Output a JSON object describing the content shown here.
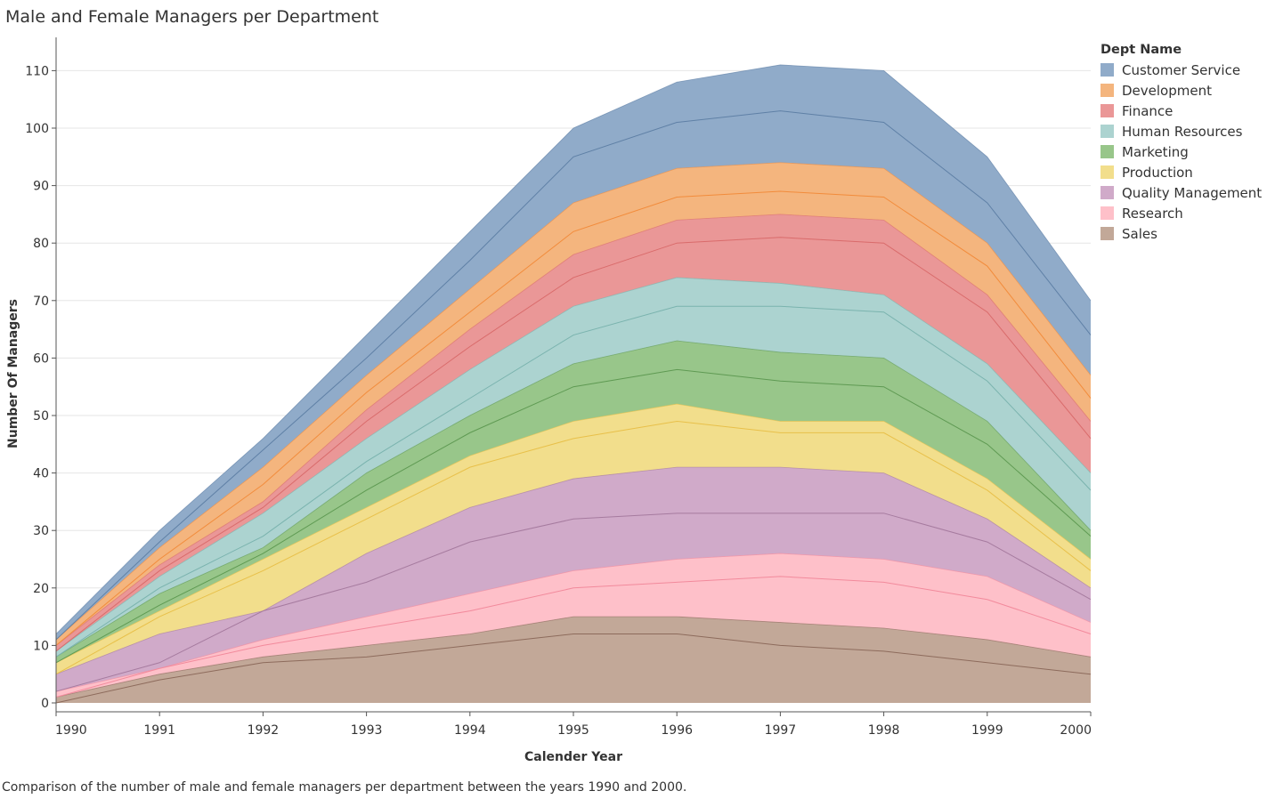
{
  "title": "Male and Female Managers per Department",
  "caption": "Comparison of the number of male and female managers per department between the years 1990 and 2000.",
  "legend_title": "Dept Name",
  "chart_data": {
    "type": "area",
    "stacked": true,
    "title": "Male and Female Managers per Department",
    "xlabel": "Calender Year",
    "ylabel": "Number Of Managers",
    "x": [
      1990,
      1991,
      1992,
      1993,
      1994,
      1995,
      1996,
      1997,
      1998,
      1999,
      2000
    ],
    "xlim": [
      1990,
      2000
    ],
    "ylim": [
      0,
      110
    ],
    "yticks": [
      0,
      10,
      20,
      30,
      40,
      50,
      60,
      70,
      80,
      90,
      100,
      110
    ],
    "grid": true,
    "legend_position": "right",
    "series": [
      {
        "name": "Sales",
        "color": "#c2a898",
        "line_color": "#8d6b5c",
        "values": [
          1,
          5,
          8,
          10,
          12,
          15,
          15,
          14,
          13,
          11,
          8
        ],
        "inner_line": [
          0,
          4,
          7,
          8,
          10,
          12,
          12,
          10,
          9,
          7,
          5
        ]
      },
      {
        "name": "Research",
        "color": "#fec0c9",
        "line_color": "#f28a9c",
        "values": [
          1,
          1,
          3,
          5,
          7,
          8,
          10,
          12,
          12,
          11,
          6
        ],
        "inner_line": [
          0,
          1,
          2,
          3,
          4,
          5,
          6,
          8,
          8,
          7,
          4
        ]
      },
      {
        "name": "Quality Management",
        "color": "#d0aac9",
        "line_color": "#a67b9f",
        "values": [
          3,
          6,
          5,
          11,
          15,
          16,
          16,
          15,
          15,
          10,
          6
        ],
        "inner_line": [
          0,
          1,
          5,
          6,
          9,
          9,
          8,
          7,
          8,
          6,
          4
        ]
      },
      {
        "name": "Production",
        "color": "#f2de8c",
        "line_color": "#e8c04a",
        "values": [
          2,
          4,
          9,
          8,
          9,
          10,
          11,
          8,
          9,
          7,
          5
        ],
        "inner_line": [
          0,
          3,
          7,
          6,
          7,
          7,
          8,
          6,
          7,
          5,
          3
        ]
      },
      {
        "name": "Marketing",
        "color": "#98c68a",
        "line_color": "#5f9a53",
        "values": [
          1,
          3,
          2,
          6,
          7,
          10,
          11,
          12,
          11,
          10,
          5
        ],
        "inner_line": [
          0,
          1,
          1,
          3,
          4,
          6,
          6,
          7,
          6,
          6,
          4
        ]
      },
      {
        "name": "Human Resources",
        "color": "#acd3d0",
        "line_color": "#7ab3ae",
        "values": [
          1,
          3,
          6,
          6,
          8,
          10,
          11,
          12,
          11,
          10,
          10
        ],
        "inner_line": [
          0,
          1,
          2,
          2,
          3,
          5,
          6,
          8,
          8,
          7,
          7
        ]
      },
      {
        "name": "Finance",
        "color": "#ea9797",
        "line_color": "#d96b6b",
        "values": [
          1,
          2,
          2,
          5,
          7,
          9,
          10,
          12,
          13,
          12,
          9
        ],
        "inner_line": [
          0,
          1,
          1,
          3,
          4,
          5,
          6,
          8,
          9,
          9,
          6
        ]
      },
      {
        "name": "Development",
        "color": "#f4b57e",
        "line_color": "#f28c3c",
        "values": [
          1,
          3,
          6,
          6,
          7,
          9,
          9,
          9,
          9,
          9,
          8
        ],
        "inner_line": [
          0,
          1,
          3,
          3,
          3,
          4,
          4,
          4,
          4,
          5,
          4
        ]
      },
      {
        "name": "Customer Service",
        "color": "#90abc9",
        "line_color": "#5f80a6",
        "values": [
          1,
          3,
          5,
          7,
          10,
          13,
          15,
          17,
          17,
          15,
          13
        ],
        "inner_line": [
          0,
          1,
          3,
          3,
          5,
          8,
          8,
          9,
          8,
          7,
          7
        ]
      }
    ],
    "legend_order": [
      "Customer Service",
      "Development",
      "Finance",
      "Human Resources",
      "Marketing",
      "Production",
      "Quality Management",
      "Research",
      "Sales"
    ]
  }
}
